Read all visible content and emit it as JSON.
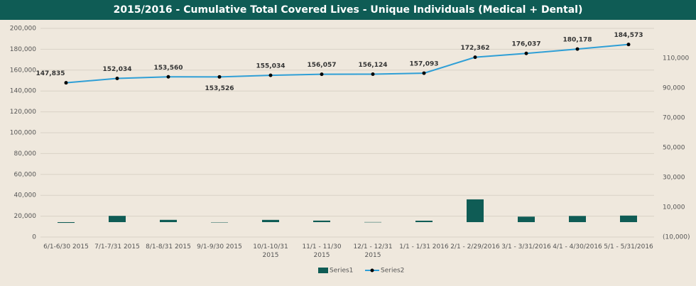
{
  "chart_data": {
    "type": "bar+line",
    "title": "2015/2016 - Cumulative Total Covered Lives - Unique Individuals (Medical + Dental)",
    "categories": [
      "6/1-6/30 2015",
      "7/1-7/31 2015",
      "8/1-8/31 2015",
      "9/1-9/30 2015",
      "10/1-10/31 2015",
      "11/1 - 11/30 2015",
      "12/1 - 12/31 2015",
      "1/1 - 1/31 2016",
      "2/1 - 2/29/2016",
      "3/1 - 3/31/2016",
      "4/1 - 4/30/2016",
      "5/1 - 5/31/2016"
    ],
    "series": [
      {
        "name": "Series1",
        "type": "bar",
        "axis": "y2",
        "color": "#0f5c55",
        "values": [
          -500,
          4199,
          1526,
          -34,
          1508,
          1023,
          67,
          969,
          15269,
          3675,
          4141,
          4395
        ]
      },
      {
        "name": "Series2",
        "type": "line",
        "color": "#2f9fd6",
        "marker_color": "#000000",
        "values": [
          147835,
          152034,
          153560,
          153526,
          155034,
          156057,
          156124,
          157093,
          172362,
          176037,
          180178,
          184573
        ],
        "value_labels": [
          "147,835",
          "152,034",
          "153,560",
          "153,526",
          "155,034",
          "156,057",
          "156,124",
          "157,093",
          "172,362",
          "176,037",
          "180,178",
          "184,573"
        ]
      }
    ],
    "ylim": [
      0,
      200000
    ],
    "yticks": [
      {
        "value": 0,
        "label": "0"
      },
      {
        "value": 20000,
        "label": "20,000"
      },
      {
        "value": 40000,
        "label": "40,000"
      },
      {
        "value": 60000,
        "label": "60,000"
      },
      {
        "value": 80000,
        "label": "80,000"
      },
      {
        "value": 100000,
        "label": "100,000"
      },
      {
        "value": 120000,
        "label": "120,000"
      },
      {
        "value": 140000,
        "label": "140,000"
      },
      {
        "value": 160000,
        "label": "160,000"
      },
      {
        "value": 180000,
        "label": "180,000"
      },
      {
        "value": 200000,
        "label": "200,000"
      }
    ],
    "y2lim": [
      -10000,
      130000
    ],
    "y2ticks": [
      {
        "value": -10000,
        "label": "(10,000)"
      },
      {
        "value": 10000,
        "label": "10,000"
      },
      {
        "value": 30000,
        "label": "30,000"
      },
      {
        "value": 50000,
        "label": "50,000"
      },
      {
        "value": 70000,
        "label": "70,000"
      },
      {
        "value": 90000,
        "label": "90,000"
      },
      {
        "value": 110000,
        "label": "110,000"
      }
    ],
    "grid": true,
    "legend": "bottom"
  }
}
